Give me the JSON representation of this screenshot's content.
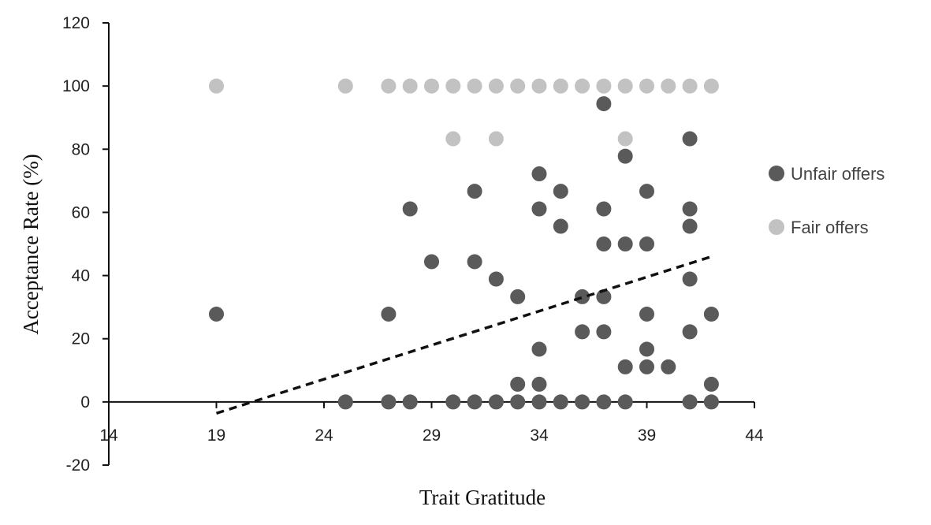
{
  "chart_data": {
    "type": "scatter",
    "xlabel": "Trait Gratitude",
    "ylabel": "Acceptance Rate (%)",
    "xlim": [
      14,
      44
    ],
    "ylim": [
      -20,
      120
    ],
    "xticks": [
      "14",
      "19",
      "24",
      "29",
      "34",
      "39",
      "44"
    ],
    "yticks": [
      "-20",
      "0",
      "20",
      "40",
      "60",
      "80",
      "100",
      "120"
    ],
    "grid": false,
    "legend_position": "right",
    "series": [
      {
        "name": "Unfair offers",
        "color": "#5a5a5a",
        "points": [
          [
            19,
            27.8
          ],
          [
            25,
            0
          ],
          [
            27,
            27.8
          ],
          [
            27,
            0
          ],
          [
            28,
            61.1
          ],
          [
            28,
            0
          ],
          [
            29,
            44.4
          ],
          [
            30,
            0
          ],
          [
            31,
            66.7
          ],
          [
            31,
            44.4
          ],
          [
            31,
            0
          ],
          [
            32,
            38.9
          ],
          [
            32,
            0
          ],
          [
            33,
            33.3
          ],
          [
            33,
            5.6
          ],
          [
            33,
            0
          ],
          [
            34,
            72.2
          ],
          [
            34,
            61.1
          ],
          [
            34,
            16.7
          ],
          [
            34,
            5.6
          ],
          [
            34,
            0
          ],
          [
            35,
            66.7
          ],
          [
            35,
            55.6
          ],
          [
            35,
            0
          ],
          [
            36,
            33.3
          ],
          [
            36,
            22.2
          ],
          [
            36,
            0
          ],
          [
            37,
            94.4
          ],
          [
            37,
            61.1
          ],
          [
            37,
            50
          ],
          [
            37,
            33.3
          ],
          [
            37,
            22.2
          ],
          [
            37,
            0
          ],
          [
            38,
            77.8
          ],
          [
            38,
            50
          ],
          [
            38,
            11.1
          ],
          [
            38,
            0
          ],
          [
            39,
            66.7
          ],
          [
            39,
            50
          ],
          [
            39,
            27.8
          ],
          [
            39,
            16.7
          ],
          [
            39,
            11.1
          ],
          [
            40,
            11.1
          ],
          [
            41,
            83.3
          ],
          [
            41,
            61.1
          ],
          [
            41,
            55.6
          ],
          [
            41,
            38.9
          ],
          [
            41,
            22.2
          ],
          [
            41,
            0
          ],
          [
            42,
            27.8
          ],
          [
            42,
            5.6
          ],
          [
            42,
            0
          ]
        ]
      },
      {
        "name": "Fair offers",
        "color": "#c2c2c2",
        "points": [
          [
            19,
            100
          ],
          [
            25,
            100
          ],
          [
            27,
            100
          ],
          [
            28,
            100
          ],
          [
            29,
            100
          ],
          [
            30,
            100
          ],
          [
            30,
            83.3
          ],
          [
            31,
            100
          ],
          [
            32,
            100
          ],
          [
            32,
            83.3
          ],
          [
            33,
            100
          ],
          [
            34,
            100
          ],
          [
            35,
            100
          ],
          [
            36,
            100
          ],
          [
            37,
            100
          ],
          [
            38,
            100
          ],
          [
            38,
            83.3
          ],
          [
            39,
            100
          ],
          [
            40,
            100
          ],
          [
            41,
            100
          ],
          [
            42,
            100
          ]
        ]
      }
    ],
    "trendline": {
      "series": "Unfair offers",
      "style": "dashed",
      "color": "#111111",
      "points": [
        [
          19,
          -3.6
        ],
        [
          42,
          46
        ]
      ]
    }
  }
}
